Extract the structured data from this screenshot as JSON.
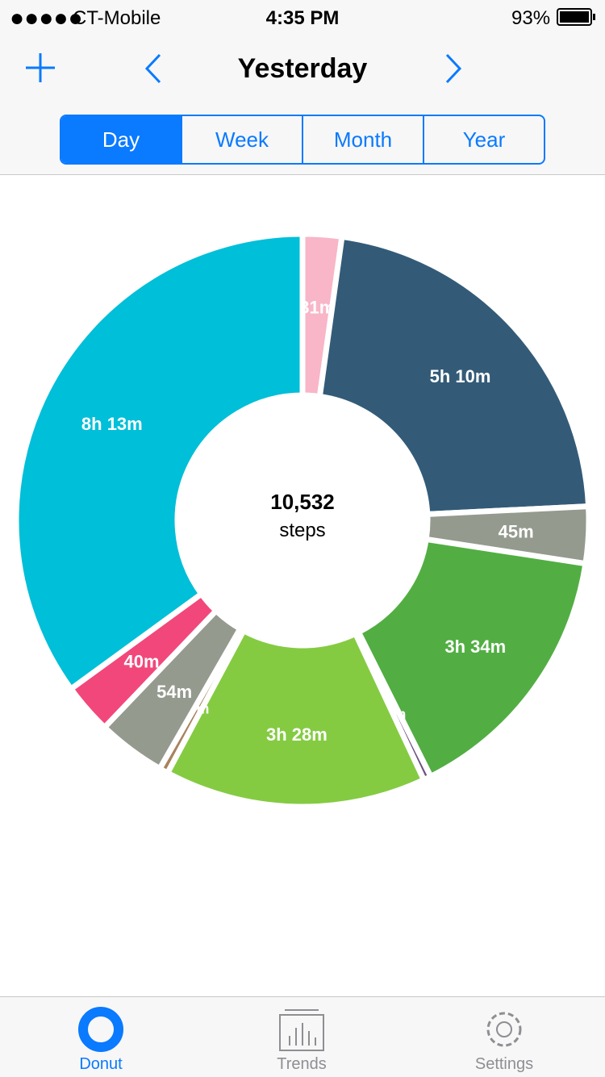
{
  "status_bar": {
    "carrier": "CT-Mobile",
    "time": "4:35 PM",
    "battery": "93%"
  },
  "nav": {
    "title": "Yesterday"
  },
  "segmented": [
    "Day",
    "Week",
    "Month",
    "Year"
  ],
  "chart_data": {
    "type": "donut",
    "values": [
      31,
      310,
      45,
      214,
      6,
      208,
      7,
      54,
      40,
      493
    ],
    "value_labels": [
      "31m",
      "5h 10m",
      "45m",
      "3h 34m",
      "6m",
      "3h 28m",
      "7m",
      "54m",
      "40m",
      "8h 13m"
    ],
    "colors": [
      "#f8b6c8",
      "#335b78",
      "#949a8e",
      "#52ae43",
      "#6e4f81",
      "#84cb42",
      "#a7835f",
      "#949a8e",
      "#f2477b",
      "#00bfd8"
    ],
    "center_text": [
      "10,532",
      "steps"
    ]
  },
  "tab_bar": [
    "Donut",
    "Trends",
    "Settings"
  ]
}
